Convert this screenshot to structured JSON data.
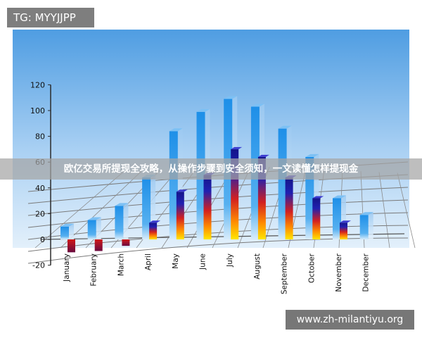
{
  "overlay": {
    "tag": "TG: MYYJJPP",
    "headline": "欧亿交易所提现全攻略，从操作步骤到安全须知，一文读懂怎样提现金",
    "watermark": "www.zh-milantiyu.org"
  },
  "colors": {
    "sky_top": "#4f9de2",
    "sky_bottom": "#dcecfa",
    "blue_bar": "#1e8fe8",
    "blue_bar_light": "#bcdcf6",
    "heat_top": "#1a1a90",
    "heat_mid": "#d22020",
    "heat_bottom": "#ffe600",
    "grid": "#7a7a7a"
  },
  "chart_data": {
    "type": "bar",
    "categories": [
      "January",
      "February",
      "March",
      "April",
      "May",
      "June",
      "July",
      "August",
      "September",
      "October",
      "November",
      "December"
    ],
    "y_ticks": [
      "120",
      "100",
      "80",
      "60",
      "40",
      "20",
      "0",
      "-20"
    ],
    "ylim": [
      -20,
      120
    ],
    "grid": true,
    "legend": "none",
    "series": [
      {
        "values": [
          10,
          15,
          26,
          48,
          84,
          99,
          109,
          103,
          86,
          64,
          32,
          19
        ]
      },
      {
        "values": [
          -10,
          -9,
          -5,
          13,
          37,
          50,
          70,
          64,
          48,
          32,
          13,
          0
        ]
      }
    ]
  }
}
